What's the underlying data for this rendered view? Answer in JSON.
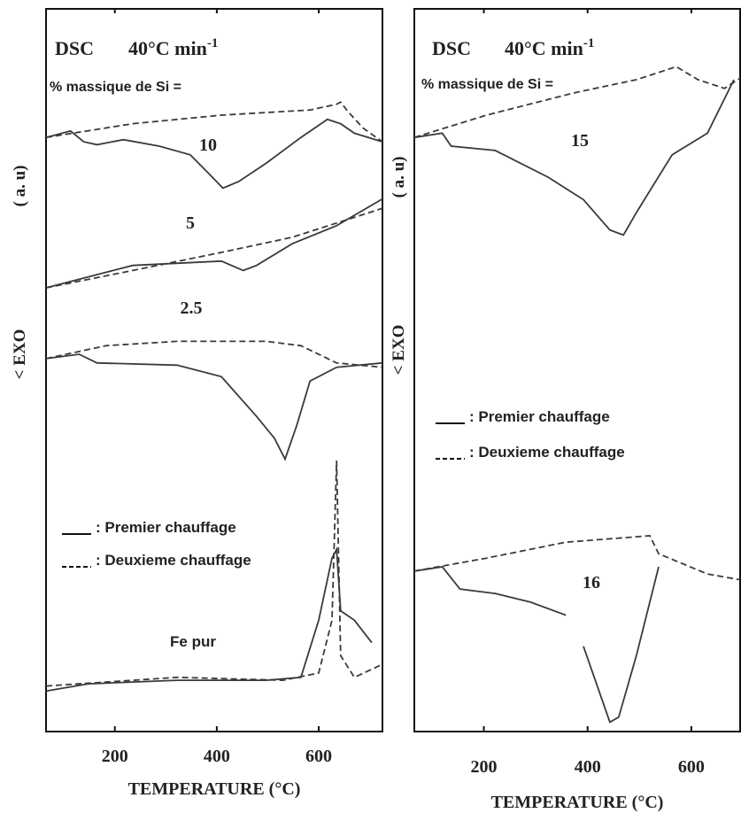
{
  "chart_data": [
    {
      "type": "line",
      "title": "DSC",
      "rate": {
        "text": "40°C min",
        "sup": "-1"
      },
      "subtitle": "% massique de Si =",
      "xlabel": "TEMPERATURE (°C)",
      "ylabel": [
        "< EXO",
        "( a. u)"
      ],
      "xlim": [
        65,
        725
      ],
      "ylim": [
        0,
        100
      ],
      "xticks": [
        200,
        400,
        600
      ],
      "color": "#3a3a3a",
      "legend": [
        {
          "label": ": Premier   chauffage",
          "dash": "solid"
        },
        {
          "label": ": Deuxieme chauffage",
          "dash": "dashed"
        }
      ],
      "series": [
        {
          "name": "10",
          "dash": "solid",
          "x": [
            65,
            113,
            139,
            165,
            217,
            287,
            348,
            383,
            412,
            443,
            496,
            565,
            617,
            643,
            670,
            725
          ],
          "values": [
            82.2,
            83.1,
            81.6,
            81.2,
            81.9,
            81.0,
            79.8,
            77.3,
            75.2,
            76.1,
            78.6,
            82.2,
            84.7,
            84.1,
            82.8,
            81.6
          ]
        },
        {
          "name": "10",
          "dash": "dashed",
          "x": [
            65,
            235,
            409,
            583,
            635,
            643,
            656,
            687,
            725
          ],
          "values": [
            82.2,
            84.1,
            85.3,
            86.0,
            86.8,
            87.1,
            85.9,
            83.5,
            81.6
          ]
        },
        {
          "name": "5",
          "dash": "solid",
          "x": [
            65,
            235,
            409,
            452,
            478,
            548,
            635,
            725
          ],
          "values": [
            61.4,
            64.5,
            65.1,
            63.8,
            64.5,
            67.5,
            70.0,
            73.7
          ]
        },
        {
          "name": "5",
          "dash": "dashed",
          "x": [
            65,
            235,
            409,
            548,
            725
          ],
          "values": [
            61.4,
            63.8,
            66.3,
            68.4,
            72.4
          ]
        },
        {
          "name": "2.5",
          "dash": "solid",
          "x": [
            65,
            130,
            165,
            322,
            409,
            478,
            513,
            534,
            557,
            583,
            635,
            725
          ],
          "values": [
            51.6,
            52.2,
            51.0,
            50.7,
            49.1,
            43.6,
            40.6,
            37.7,
            42.4,
            48.5,
            50.4,
            51.0
          ]
        },
        {
          "name": "2.5",
          "dash": "dashed",
          "x": [
            65,
            183,
            322,
            496,
            565,
            635,
            725
          ],
          "values": [
            51.6,
            53.4,
            54.0,
            54.0,
            53.4,
            51.0,
            50.4
          ]
        },
        {
          "name": "Fe pur",
          "dash": "solid",
          "x": [
            65,
            148,
            322,
            496,
            565,
            600,
            626,
            635,
            643,
            670,
            704
          ],
          "values": [
            5.6,
            6.6,
            7.1,
            7.1,
            7.5,
            15.4,
            24.0,
            25.2,
            16.7,
            15.4,
            12.3
          ]
        },
        {
          "name": "Fe pur",
          "dash": "dashed",
          "x": [
            65,
            322,
            530,
            600,
            626,
            635,
            643,
            670,
            725
          ],
          "values": [
            6.3,
            7.5,
            7.1,
            8.1,
            15.4,
            37.5,
            10.5,
            7.5,
            9.3
          ]
        }
      ]
    },
    {
      "type": "line",
      "title": "DSC",
      "rate": {
        "text": "40°C min",
        "sup": "-1"
      },
      "subtitle": "% massique de Si =",
      "xlabel": "TEMPERATURE (°C)",
      "ylabel": [
        "< EXO",
        "( a. u)"
      ],
      "xlim": [
        66,
        694
      ],
      "ylim": [
        0,
        100
      ],
      "xticks": [
        200,
        400,
        600
      ],
      "color": "#3a3a3a",
      "legend": [
        {
          "label": ": Premier   chauffage",
          "dash": "solid"
        },
        {
          "label": ": Deuxieme chauffage",
          "dash": "dashed"
        }
      ],
      "series": [
        {
          "name": "15",
          "dash": "solid",
          "x": [
            66,
            120,
            137,
            222,
            324,
            392,
            443,
            469,
            494,
            563,
            631,
            682
          ],
          "values": [
            82.2,
            82.8,
            81.0,
            80.4,
            76.7,
            73.6,
            69.4,
            68.7,
            71.8,
            79.8,
            82.8,
            90.2
          ]
        },
        {
          "name": "15",
          "dash": "dashed",
          "x": [
            66,
            205,
            375,
            494,
            571,
            613,
            664,
            694
          ],
          "values": [
            82.2,
            85.3,
            88.4,
            90.2,
            92.0,
            90.2,
            89.0,
            90.4
          ]
        },
        {
          "name": "16",
          "dash": "solid",
          "x": [
            66,
            120,
            154,
            222,
            290,
            358,
            null,
            392,
            443,
            460,
            494,
            537
          ],
          "values": [
            22.2,
            22.8,
            19.7,
            19.1,
            17.9,
            16.1,
            null,
            11.8,
            1.3,
            2.0,
            10.5,
            22.8
          ]
        },
        {
          "name": "16",
          "dash": "dashed",
          "x": [
            66,
            205,
            358,
            520,
            537,
            631,
            694
          ],
          "values": [
            22.2,
            24.0,
            26.2,
            27.1,
            24.6,
            21.8,
            21.0
          ]
        }
      ]
    }
  ]
}
